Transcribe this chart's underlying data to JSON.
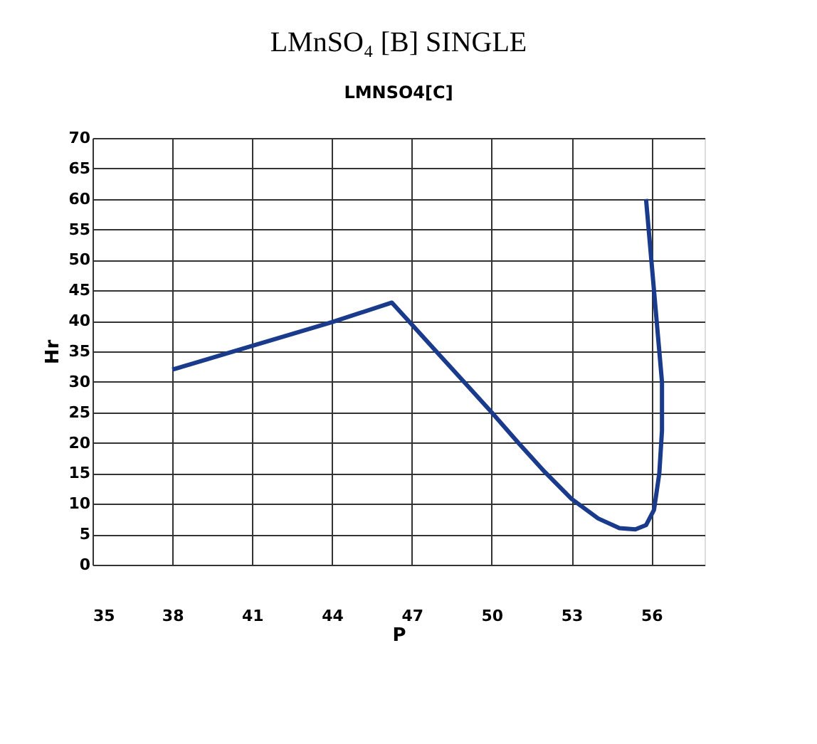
{
  "chart_data": {
    "type": "line",
    "title": "LMnSO₄ [B] SINGLE",
    "subtitle": "LMNSO4[C]",
    "xlabel": "P",
    "ylabel": "Hr",
    "x": [
      38,
      40,
      42,
      44,
      46.25,
      47,
      48,
      49,
      50,
      51,
      52,
      53,
      54,
      54.8,
      55.4,
      55.8,
      56.1,
      56.3,
      56.4,
      56.4,
      56.2,
      56.0,
      55.8
    ],
    "series": [
      {
        "color": "#1a3a8c",
        "values": [
          32,
          34.6,
          37.2,
          39.8,
          43,
          39.4,
          34.6,
          29.8,
          25,
          20,
          15.2,
          10.8,
          7.6,
          6,
          5.8,
          6.5,
          9,
          15,
          22,
          30,
          40,
          50,
          60
        ]
      }
    ],
    "xlim": [
      35,
      58
    ],
    "xticks": [
      35,
      38,
      41,
      44,
      47,
      50,
      53,
      56
    ],
    "ylim": [
      0,
      70
    ],
    "yticks": [
      0,
      5,
      10,
      15,
      20,
      25,
      30,
      35,
      40,
      45,
      50,
      55,
      60,
      65,
      70
    ],
    "grid": true,
    "legend": false,
    "marker": "none",
    "line_style": "solid"
  }
}
